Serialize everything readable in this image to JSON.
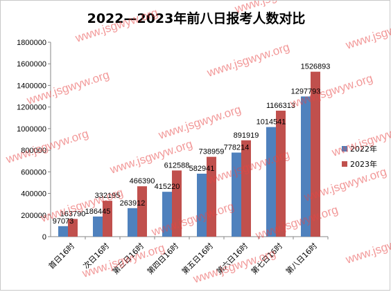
{
  "chart_data": {
    "type": "bar",
    "title": "2022—2023年前八日报考人数对比",
    "categories": [
      "首日16时",
      "次日16时",
      "第三日16时",
      "第四日16时",
      "第五日16时",
      "第六日16时",
      "第七日16时",
      "第八日16时"
    ],
    "series": [
      {
        "name": "2022年",
        "color": "#4f81bd",
        "values": [
          97073,
          186445,
          263912,
          415220,
          582941,
          778214,
          1014541,
          1297793
        ]
      },
      {
        "name": "2023年",
        "color": "#c0504d",
        "values": [
          163790,
          332195,
          466390,
          612588,
          738959,
          891919,
          1166313,
          1526893
        ]
      }
    ],
    "ylim": [
      0,
      1800000
    ],
    "yticks": [
      0,
      200000,
      400000,
      600000,
      800000,
      1000000,
      1200000,
      1400000,
      1600000,
      1800000
    ],
    "grid": false,
    "legend_position": "right",
    "watermark_text": "www.jsgwyw.org"
  }
}
